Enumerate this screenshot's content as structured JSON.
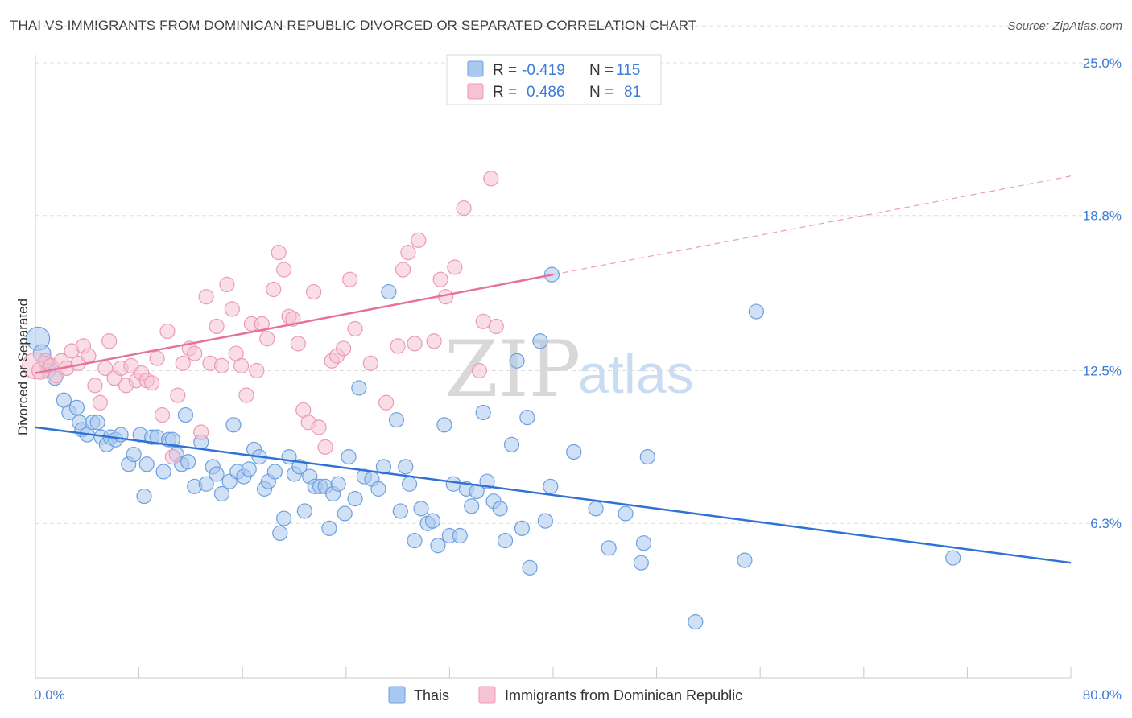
{
  "title": "THAI VS IMMIGRANTS FROM DOMINICAN REPUBLIC DIVORCED OR SEPARATED CORRELATION CHART",
  "source": "Source: ZipAtlas.com",
  "watermark": {
    "zip": "ZIP",
    "atlas": "atlas"
  },
  "colors": {
    "thais_fill": "#a9c8ef",
    "thais_stroke": "#6d9fe0",
    "thais_line": "#2f72d6",
    "dom_fill": "#f6c3d2",
    "dom_stroke": "#ec9ab5",
    "dom_line": "#e8709a",
    "grid": "#dddddd",
    "tick_text": "#3d7bd6"
  },
  "legend": {
    "rows": [
      {
        "r_label": "R =",
        "r_value": "-0.419",
        "n_label": "N =",
        "n_value": "115"
      },
      {
        "r_label": "R =",
        "r_value": "0.486",
        "n_label": "N =",
        "n_value": "81"
      }
    ]
  },
  "bottom_legend": [
    "Thais",
    "Immigrants from Dominican Republic"
  ],
  "chart_data": {
    "type": "scatter",
    "title": "THAI VS IMMIGRANTS FROM DOMINICAN REPUBLIC DIVORCED OR SEPARATED CORRELATION CHART",
    "xlabel": "",
    "ylabel": "Divorced or Separated",
    "xlim": [
      0,
      80
    ],
    "ylim": [
      0,
      26.5
    ],
    "x_tick_labels": [
      "0.0%",
      "80.0%"
    ],
    "y_ticks": [
      6.3,
      12.5,
      18.8,
      25.0
    ],
    "y_tick_labels": [
      "6.3%",
      "12.5%",
      "18.8%",
      "25.0%"
    ],
    "grid": true,
    "legend_position": "top-center",
    "series": [
      {
        "name": "Thais",
        "trend": {
          "x0": 0,
          "y0": 10.2,
          "x1": 80,
          "y1": 4.7,
          "solid_until": 80
        },
        "points": [
          [
            0.2,
            13.8,
            1.6
          ],
          [
            0.5,
            13.2,
            1.2
          ],
          [
            0.8,
            12.8,
            1
          ],
          [
            1.0,
            12.5,
            1
          ],
          [
            1.5,
            12.2,
            1
          ],
          [
            2.2,
            11.3,
            1
          ],
          [
            2.6,
            10.8,
            1
          ],
          [
            3.2,
            11.0,
            1
          ],
          [
            3.4,
            10.4,
            1
          ],
          [
            3.6,
            10.1,
            1
          ],
          [
            4.0,
            9.9,
            1
          ],
          [
            4.4,
            10.4,
            1
          ],
          [
            4.8,
            10.4,
            1
          ],
          [
            5.1,
            9.8,
            1
          ],
          [
            5.5,
            9.5,
            1
          ],
          [
            5.8,
            9.8,
            1
          ],
          [
            6.2,
            9.7,
            1
          ],
          [
            6.6,
            9.9,
            1
          ],
          [
            7.2,
            8.7,
            1
          ],
          [
            7.6,
            9.1,
            1
          ],
          [
            8.1,
            9.9,
            1
          ],
          [
            8.4,
            7.4,
            1
          ],
          [
            8.6,
            8.7,
            1
          ],
          [
            9.0,
            9.8,
            1
          ],
          [
            9.4,
            9.8,
            1
          ],
          [
            9.9,
            8.4,
            1
          ],
          [
            10.3,
            9.7,
            1
          ],
          [
            10.6,
            9.7,
            1
          ],
          [
            10.9,
            9.1,
            1
          ],
          [
            11.3,
            8.7,
            1
          ],
          [
            11.8,
            8.8,
            1
          ],
          [
            11.6,
            10.7,
            1
          ],
          [
            12.3,
            7.8,
            1
          ],
          [
            12.8,
            9.6,
            1
          ],
          [
            13.2,
            7.9,
            1
          ],
          [
            13.7,
            8.6,
            1
          ],
          [
            14.0,
            8.3,
            1
          ],
          [
            14.4,
            7.5,
            1
          ],
          [
            15.0,
            8.0,
            1
          ],
          [
            15.3,
            10.3,
            1
          ],
          [
            15.6,
            8.4,
            1
          ],
          [
            16.1,
            8.2,
            1
          ],
          [
            16.5,
            8.5,
            1
          ],
          [
            16.9,
            9.3,
            1
          ],
          [
            17.3,
            9.0,
            1
          ],
          [
            17.7,
            7.7,
            1
          ],
          [
            18.0,
            8.0,
            1
          ],
          [
            18.5,
            8.4,
            1
          ],
          [
            18.9,
            5.9,
            1
          ],
          [
            19.2,
            6.5,
            1
          ],
          [
            19.6,
            9.0,
            1
          ],
          [
            20.0,
            8.3,
            1
          ],
          [
            20.4,
            8.6,
            1
          ],
          [
            20.8,
            6.8,
            1
          ],
          [
            21.2,
            8.2,
            1
          ],
          [
            21.6,
            7.8,
            1
          ],
          [
            22.0,
            7.8,
            1
          ],
          [
            22.4,
            7.8,
            1
          ],
          [
            22.7,
            6.1,
            1
          ],
          [
            23.0,
            7.5,
            1
          ],
          [
            23.4,
            7.9,
            1
          ],
          [
            23.9,
            6.7,
            1
          ],
          [
            24.2,
            9.0,
            1
          ],
          [
            24.7,
            7.3,
            1
          ],
          [
            25.0,
            11.8,
            1
          ],
          [
            25.4,
            8.2,
            1
          ],
          [
            26.0,
            8.1,
            1
          ],
          [
            26.5,
            7.7,
            1
          ],
          [
            26.9,
            8.6,
            1
          ],
          [
            27.3,
            15.7,
            1
          ],
          [
            27.9,
            10.5,
            1
          ],
          [
            28.2,
            6.8,
            1
          ],
          [
            28.6,
            8.6,
            1
          ],
          [
            28.9,
            7.9,
            1
          ],
          [
            29.3,
            5.6,
            1
          ],
          [
            29.8,
            6.9,
            1
          ],
          [
            30.3,
            6.3,
            1
          ],
          [
            30.7,
            6.4,
            1
          ],
          [
            31.1,
            5.4,
            1
          ],
          [
            31.6,
            10.3,
            1
          ],
          [
            32.0,
            5.8,
            1
          ],
          [
            32.3,
            7.9,
            1
          ],
          [
            32.8,
            5.8,
            1
          ],
          [
            33.3,
            7.7,
            1
          ],
          [
            33.7,
            7.0,
            1
          ],
          [
            34.1,
            7.6,
            1
          ],
          [
            34.6,
            10.8,
            1
          ],
          [
            34.9,
            8.0,
            1
          ],
          [
            35.4,
            7.2,
            1
          ],
          [
            35.9,
            6.9,
            1
          ],
          [
            36.3,
            5.6,
            1
          ],
          [
            36.8,
            9.5,
            1
          ],
          [
            37.2,
            12.9,
            1
          ],
          [
            37.6,
            6.1,
            1
          ],
          [
            38.0,
            10.6,
            1
          ],
          [
            38.2,
            4.5,
            1
          ],
          [
            39.0,
            13.7,
            1
          ],
          [
            39.4,
            6.4,
            1
          ],
          [
            39.8,
            7.8,
            1
          ],
          [
            39.9,
            16.4,
            1
          ],
          [
            41.6,
            9.2,
            1
          ],
          [
            43.3,
            6.9,
            1
          ],
          [
            44.3,
            5.3,
            1
          ],
          [
            45.6,
            6.7,
            1
          ],
          [
            46.8,
            4.7,
            1
          ],
          [
            47.0,
            5.5,
            1
          ],
          [
            47.3,
            9.0,
            1
          ],
          [
            51.0,
            2.3,
            1
          ],
          [
            54.8,
            4.8,
            1
          ],
          [
            55.7,
            14.9,
            1
          ],
          [
            70.9,
            4.9,
            1
          ]
        ]
      },
      {
        "name": "Immigrants from Dominican Republic",
        "trend": {
          "x0": 0,
          "y0": 12.4,
          "x1": 80,
          "y1": 20.4,
          "solid_until": 40
        },
        "points": [
          [
            0.0,
            12.7,
            1.8
          ],
          [
            0.4,
            12.5,
            1.2
          ],
          [
            0.8,
            12.9,
            1
          ],
          [
            1.2,
            12.7,
            1
          ],
          [
            1.6,
            12.3,
            1
          ],
          [
            2.0,
            12.9,
            1
          ],
          [
            2.4,
            12.6,
            1
          ],
          [
            2.8,
            13.3,
            1
          ],
          [
            3.3,
            12.8,
            1
          ],
          [
            3.7,
            13.5,
            1
          ],
          [
            4.1,
            13.1,
            1
          ],
          [
            4.6,
            11.9,
            1
          ],
          [
            5.0,
            11.2,
            1
          ],
          [
            5.4,
            12.6,
            1
          ],
          [
            5.7,
            13.7,
            1
          ],
          [
            6.1,
            12.2,
            1
          ],
          [
            6.6,
            12.6,
            1
          ],
          [
            7.0,
            11.9,
            1
          ],
          [
            7.4,
            12.7,
            1
          ],
          [
            7.8,
            12.1,
            1
          ],
          [
            8.2,
            12.4,
            1
          ],
          [
            8.6,
            12.1,
            1
          ],
          [
            9.0,
            12.0,
            1
          ],
          [
            9.4,
            13.0,
            1
          ],
          [
            9.8,
            10.7,
            1
          ],
          [
            10.2,
            14.1,
            1
          ],
          [
            10.6,
            9.0,
            1
          ],
          [
            11.0,
            11.5,
            1
          ],
          [
            11.4,
            12.8,
            1
          ],
          [
            11.9,
            13.4,
            1
          ],
          [
            12.3,
            13.2,
            1
          ],
          [
            12.8,
            10.0,
            1
          ],
          [
            13.2,
            15.5,
            1
          ],
          [
            13.5,
            12.8,
            1
          ],
          [
            14.0,
            14.3,
            1
          ],
          [
            14.4,
            12.7,
            1
          ],
          [
            14.8,
            16.0,
            1
          ],
          [
            15.2,
            15.0,
            1
          ],
          [
            15.5,
            13.2,
            1
          ],
          [
            15.9,
            12.7,
            1
          ],
          [
            16.3,
            11.5,
            1
          ],
          [
            16.7,
            14.4,
            1
          ],
          [
            17.1,
            12.5,
            1
          ],
          [
            17.5,
            14.4,
            1
          ],
          [
            17.9,
            13.8,
            1
          ],
          [
            18.4,
            15.8,
            1
          ],
          [
            18.8,
            17.3,
            1
          ],
          [
            19.2,
            16.6,
            1
          ],
          [
            19.6,
            14.7,
            1
          ],
          [
            19.9,
            14.6,
            1
          ],
          [
            20.3,
            13.6,
            1
          ],
          [
            20.7,
            10.9,
            1
          ],
          [
            21.1,
            10.4,
            1
          ],
          [
            21.5,
            15.7,
            1
          ],
          [
            21.9,
            10.2,
            1
          ],
          [
            22.4,
            9.4,
            1
          ],
          [
            22.9,
            12.9,
            1
          ],
          [
            23.3,
            13.1,
            1
          ],
          [
            23.8,
            13.4,
            1
          ],
          [
            24.3,
            16.2,
            1
          ],
          [
            24.7,
            14.2,
            1
          ],
          [
            25.9,
            12.8,
            1
          ],
          [
            27.1,
            11.2,
            1
          ],
          [
            28.0,
            13.5,
            1
          ],
          [
            28.4,
            16.6,
            1
          ],
          [
            28.8,
            17.3,
            1
          ],
          [
            29.3,
            13.6,
            1
          ],
          [
            29.6,
            17.8,
            1
          ],
          [
            30.8,
            13.7,
            1
          ],
          [
            31.3,
            16.2,
            1
          ],
          [
            31.7,
            15.5,
            1
          ],
          [
            32.4,
            16.7,
            1
          ],
          [
            33.1,
            19.1,
            1
          ],
          [
            34.3,
            12.5,
            1
          ],
          [
            34.6,
            14.5,
            1
          ],
          [
            35.2,
            20.3,
            1
          ],
          [
            35.6,
            14.3,
            1
          ]
        ]
      }
    ]
  }
}
